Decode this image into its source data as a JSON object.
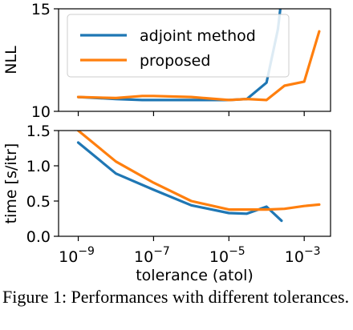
{
  "chart_data": [
    {
      "type": "line",
      "ylabel": "NLL",
      "xscale": "log",
      "xlim": [
        3e-10,
        0.005
      ],
      "ylim": [
        10,
        15
      ],
      "yticks": [
        10,
        15
      ],
      "ytick_labels": [
        "10",
        "15"
      ],
      "legend": {
        "placement": "top-left",
        "entries": [
          "adjoint method",
          "proposed"
        ]
      },
      "series": [
        {
          "name": "adjoint method",
          "color": "#1f77b4",
          "x": [
            1e-09,
            1e-08,
            5e-08,
            1e-07,
            1e-06,
            1e-05,
            3e-05,
            0.0001,
            0.0002,
            0.00025
          ],
          "y": [
            10.7,
            10.6,
            10.55,
            10.55,
            10.55,
            10.55,
            10.6,
            11.4,
            14.0,
            15.5
          ]
        },
        {
          "name": "proposed",
          "color": "#ff7f0e",
          "x": [
            1e-09,
            1e-08,
            5e-08,
            1e-07,
            1e-06,
            1e-05,
            3e-05,
            0.0001,
            0.0003,
            0.001,
            0.0025
          ],
          "y": [
            10.7,
            10.65,
            10.75,
            10.75,
            10.7,
            10.55,
            10.6,
            10.55,
            11.25,
            11.45,
            13.9
          ]
        }
      ]
    },
    {
      "type": "line",
      "xlabel": "tolerance (atol)",
      "ylabel": "time [s/itr]",
      "xscale": "log",
      "xlim": [
        3e-10,
        0.005
      ],
      "ylim": [
        0.0,
        1.5
      ],
      "yticks": [
        0.0,
        0.5,
        1.0,
        1.5
      ],
      "ytick_labels": [
        "0.0",
        "0.5",
        "1.0",
        "1.5"
      ],
      "xticks": [
        1e-09,
        1e-07,
        1e-05,
        0.001
      ],
      "xtick_labels": [
        {
          "base": "10",
          "exp": "−9"
        },
        {
          "base": "10",
          "exp": "−7"
        },
        {
          "base": "10",
          "exp": "−5"
        },
        {
          "base": "10",
          "exp": "−3"
        }
      ],
      "series": [
        {
          "name": "adjoint method",
          "color": "#1f77b4",
          "x": [
            1e-09,
            1e-08,
            1e-07,
            1e-06,
            1e-05,
            3e-05,
            0.0001,
            0.00025
          ],
          "y": [
            1.33,
            0.89,
            0.66,
            0.44,
            0.33,
            0.32,
            0.42,
            0.22
          ]
        },
        {
          "name": "proposed",
          "color": "#ff7f0e",
          "x": [
            1e-09,
            1e-08,
            1e-07,
            1e-06,
            1e-05,
            3e-05,
            0.0001,
            0.0003,
            0.001,
            0.0025
          ],
          "y": [
            1.5,
            1.06,
            0.76,
            0.5,
            0.38,
            0.38,
            0.38,
            0.39,
            0.43,
            0.45
          ]
        }
      ]
    }
  ],
  "caption": "Figure 1: Performances with different tolerances."
}
